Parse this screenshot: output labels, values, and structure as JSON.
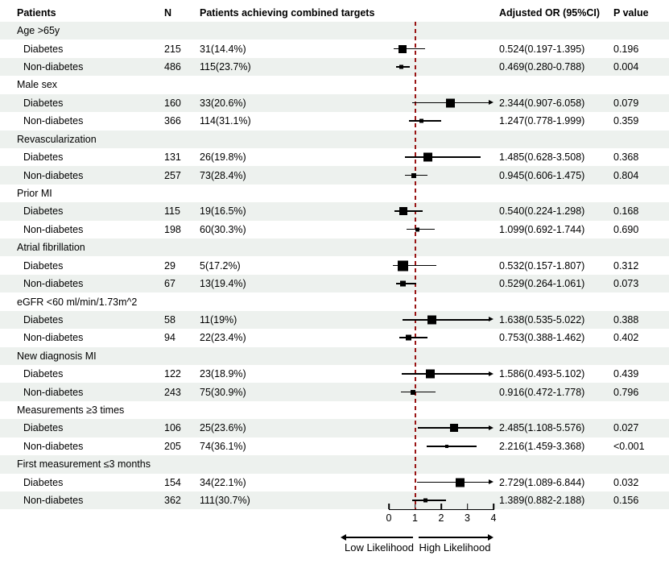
{
  "columns": {
    "patients": "Patients",
    "n": "N",
    "achieving": "Patients achieving combined targets",
    "adjusted_or": "Adjusted OR (95%CI)",
    "p_value": "P value"
  },
  "chart_data": {
    "type": "forest",
    "xlim": [
      0,
      4
    ],
    "x_ticks": [
      0,
      1,
      2,
      3,
      4
    ],
    "reference_line": 1,
    "direction_labels": {
      "low": "Low Likelihood",
      "high": "High Likelihood"
    },
    "groups": [
      {
        "label": "Age >65y",
        "rows": [
          {
            "label": "Diabetes",
            "n": "215",
            "achieved": "31(14.4%)",
            "or": 0.524,
            "ci_low": 0.197,
            "ci_high": 1.395,
            "or_ci_text": "0.524(0.197-1.395)",
            "p_value": "0.196",
            "marker_size": 10,
            "clipped": false
          },
          {
            "label": "Non-diabetes",
            "n": "486",
            "achieved": "115(23.7%)",
            "or": 0.469,
            "ci_low": 0.28,
            "ci_high": 0.788,
            "or_ci_text": "0.469(0.280-0.788)",
            "p_value": "0.004",
            "marker_size": 5,
            "clipped": false
          }
        ]
      },
      {
        "label": "Male sex",
        "rows": [
          {
            "label": "Diabetes",
            "n": "160",
            "achieved": "33(20.6%)",
            "or": 2.344,
            "ci_low": 0.907,
            "ci_high": 6.058,
            "or_ci_text": "2.344(0.907-6.058)",
            "p_value": "0.079",
            "marker_size": 11,
            "clipped": true
          },
          {
            "label": "Non-diabetes",
            "n": "366",
            "achieved": "114(31.1%)",
            "or": 1.247,
            "ci_low": 0.778,
            "ci_high": 1.999,
            "or_ci_text": "1.247(0.778-1.999)",
            "p_value": "0.359",
            "marker_size": 5,
            "clipped": false
          }
        ]
      },
      {
        "label": "Revascularization",
        "rows": [
          {
            "label": "Diabetes",
            "n": "131",
            "achieved": "26(19.8%)",
            "or": 1.485,
            "ci_low": 0.628,
            "ci_high": 3.508,
            "or_ci_text": "1.485(0.628-3.508)",
            "p_value": "0.368",
            "marker_size": 11,
            "clipped": false
          },
          {
            "label": "Non-diabetes",
            "n": "257",
            "achieved": "73(28.4%)",
            "or": 0.945,
            "ci_low": 0.606,
            "ci_high": 1.475,
            "or_ci_text": "0.945(0.606-1.475)",
            "p_value": "0.804",
            "marker_size": 6,
            "clipped": false
          }
        ]
      },
      {
        "label": "Prior MI",
        "rows": [
          {
            "label": "Diabetes",
            "n": "115",
            "achieved": "19(16.5%)",
            "or": 0.54,
            "ci_low": 0.224,
            "ci_high": 1.298,
            "or_ci_text": "0.540(0.224-1.298)",
            "p_value": "0.168",
            "marker_size": 10,
            "clipped": false
          },
          {
            "label": "Non-diabetes",
            "n": "198",
            "achieved": "60(30.3%)",
            "or": 1.099,
            "ci_low": 0.692,
            "ci_high": 1.744,
            "or_ci_text": "1.099(0.692-1.744)",
            "p_value": "0.690",
            "marker_size": 5,
            "clipped": false
          }
        ]
      },
      {
        "label": "Atrial fibrillation",
        "rows": [
          {
            "label": "Diabetes",
            "n": "29",
            "achieved": "5(17.2%)",
            "or": 0.532,
            "ci_low": 0.157,
            "ci_high": 1.807,
            "or_ci_text": "0.532(0.157-1.807)",
            "p_value": "0.312",
            "marker_size": 13,
            "clipped": false
          },
          {
            "label": "Non-diabetes",
            "n": "67",
            "achieved": "13(19.4%)",
            "or": 0.529,
            "ci_low": 0.264,
            "ci_high": 1.061,
            "or_ci_text": "0.529(0.264-1.061)",
            "p_value": "0.073",
            "marker_size": 7,
            "clipped": false
          }
        ]
      },
      {
        "label": "eGFR <60 ml/min/1.73m^2",
        "rows": [
          {
            "label": "Diabetes",
            "n": "58",
            "achieved": "11(19%)",
            "or": 1.638,
            "ci_low": 0.535,
            "ci_high": 5.022,
            "or_ci_text": "1.638(0.535-5.022)",
            "p_value": "0.388",
            "marker_size": 11,
            "clipped": true
          },
          {
            "label": "Non-diabetes",
            "n": "94",
            "achieved": "22(23.4%)",
            "or": 0.753,
            "ci_low": 0.388,
            "ci_high": 1.462,
            "or_ci_text": "0.753(0.388-1.462)",
            "p_value": "0.402",
            "marker_size": 7,
            "clipped": false
          }
        ]
      },
      {
        "label": "New diagnosis MI",
        "rows": [
          {
            "label": "Diabetes",
            "n": "122",
            "achieved": "23(18.9%)",
            "or": 1.586,
            "ci_low": 0.493,
            "ci_high": 5.102,
            "or_ci_text": "1.586(0.493-5.102)",
            "p_value": "0.439",
            "marker_size": 11,
            "clipped": true
          },
          {
            "label": "Non-diabetes",
            "n": "243",
            "achieved": "75(30.9%)",
            "or": 0.916,
            "ci_low": 0.472,
            "ci_high": 1.778,
            "or_ci_text": "0.916(0.472-1.778)",
            "p_value": "0.796",
            "marker_size": 6,
            "clipped": false
          }
        ]
      },
      {
        "label": "Measurements ≥3 times",
        "rows": [
          {
            "label": "Diabetes",
            "n": "106",
            "achieved": "25(23.6%)",
            "or": 2.485,
            "ci_low": 1.108,
            "ci_high": 5.576,
            "or_ci_text": "2.485(1.108-5.576)",
            "p_value": "0.027",
            "marker_size": 10,
            "clipped": true
          },
          {
            "label": "Non-diabetes",
            "n": "205",
            "achieved": "74(36.1%)",
            "or": 2.216,
            "ci_low": 1.459,
            "ci_high": 3.368,
            "or_ci_text": "2.216(1.459-3.368)",
            "p_value": "<0.001",
            "marker_size": 4,
            "clipped": false
          }
        ]
      },
      {
        "label": "First measurement ≤3 months",
        "rows": [
          {
            "label": "Diabetes",
            "n": "154",
            "achieved": "34(22.1%)",
            "or": 2.729,
            "ci_low": 1.089,
            "ci_high": 6.844,
            "or_ci_text": "2.729(1.089-6.844)",
            "p_value": "0.032",
            "marker_size": 11,
            "clipped": true
          },
          {
            "label": "Non-diabetes",
            "n": "362",
            "achieved": "111(30.7%)",
            "or": 1.389,
            "ci_low": 0.882,
            "ci_high": 2.188,
            "or_ci_text": "1.389(0.882-2.188)",
            "p_value": "0.156",
            "marker_size": 5,
            "clipped": false
          }
        ]
      }
    ]
  },
  "colors": {
    "stripe": "#edf1ee",
    "reference_line": "#991414",
    "marker": "#000000"
  }
}
